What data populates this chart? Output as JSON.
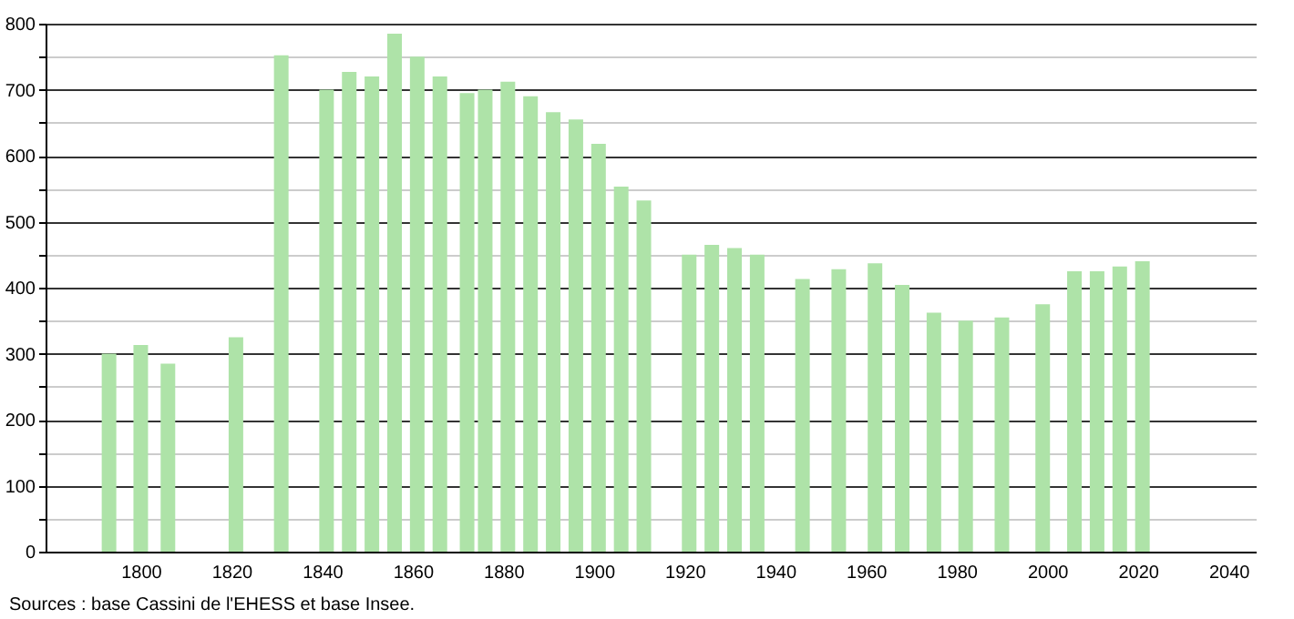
{
  "chart_data": {
    "type": "bar",
    "x": [
      1793,
      1800,
      1806,
      1821,
      1831,
      1841,
      1846,
      1851,
      1856,
      1861,
      1866,
      1872,
      1876,
      1881,
      1886,
      1891,
      1896,
      1901,
      1906,
      1911,
      1921,
      1926,
      1931,
      1936,
      1946,
      1954,
      1962,
      1968,
      1975,
      1982,
      1990,
      1999,
      2006,
      2011,
      2016,
      2021
    ],
    "values": [
      300,
      313,
      285,
      325,
      752,
      700,
      727,
      720,
      785,
      750,
      720,
      695,
      700,
      712,
      690,
      666,
      655,
      618,
      553,
      532,
      450,
      465,
      460,
      450,
      413,
      428,
      437,
      404,
      362,
      350,
      355,
      375,
      425,
      425,
      432,
      440
    ],
    "color": "#aee3a8",
    "xlim": [
      1779,
      2046
    ],
    "xticks": [
      1800,
      1820,
      1840,
      1860,
      1880,
      1900,
      1920,
      1940,
      1960,
      1980,
      2000,
      2020,
      2040
    ],
    "ylim": [
      0,
      800
    ],
    "yticks": [
      0,
      {
        "value": 50,
        "label": null
      },
      100,
      {
        "value": 150,
        "label": null
      },
      200,
      {
        "value": 250,
        "label": null
      },
      300,
      {
        "value": 350,
        "label": null
      },
      400,
      {
        "value": 450,
        "label": null
      },
      500,
      {
        "value": 550,
        "label": null
      },
      600,
      {
        "value": 650,
        "label": null
      },
      700,
      {
        "value": 750,
        "label": null
      },
      800
    ],
    "grid": "y",
    "annotations": [
      "Sources : base Cassini de l'EHESS et base Insee."
    ]
  }
}
